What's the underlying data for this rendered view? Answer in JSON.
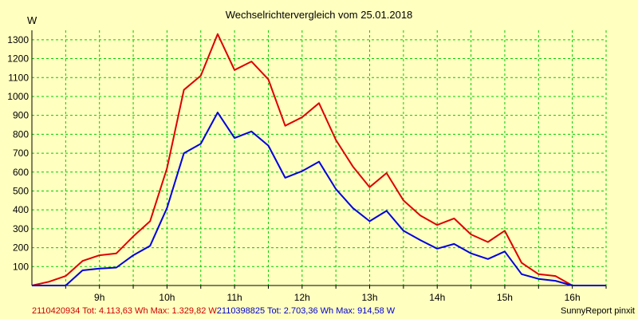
{
  "chart_data": {
    "type": "line",
    "title": "Wechselrichtervergleich vom 25.01.2018",
    "ylabel": "W",
    "xlabel": "",
    "ylim": [
      0,
      1350
    ],
    "y_ticks": [
      100,
      200,
      300,
      400,
      500,
      600,
      700,
      800,
      900,
      1000,
      1100,
      1200,
      1300
    ],
    "y_tick_labels": [
      "100",
      "200",
      "300",
      "400",
      "500",
      "600",
      "700",
      "800",
      "900",
      "1000",
      "1100",
      "1200",
      "1300"
    ],
    "xlim": [
      8.0,
      16.5
    ],
    "x_ticks": [
      8.5,
      9,
      9.5,
      10,
      10.5,
      11,
      11.5,
      12,
      12.5,
      13,
      13.5,
      14,
      14.5,
      15,
      15.5,
      16,
      16.5
    ],
    "x_tick_labels": [
      {
        "at": 9,
        "label": "9h"
      },
      {
        "at": 10,
        "label": "10h"
      },
      {
        "at": 11,
        "label": "11h"
      },
      {
        "at": 12,
        "label": "12h"
      },
      {
        "at": 13,
        "label": "13h"
      },
      {
        "at": 14,
        "label": "14h"
      },
      {
        "at": 15,
        "label": "15h"
      },
      {
        "at": 16,
        "label": "16h"
      }
    ],
    "grid": true,
    "x": [
      8.0,
      8.25,
      8.5,
      8.75,
      9.0,
      9.25,
      9.5,
      9.75,
      10.0,
      10.25,
      10.5,
      10.75,
      11.0,
      11.25,
      11.5,
      11.75,
      12.0,
      12.25,
      12.5,
      12.75,
      13.0,
      13.25,
      13.5,
      13.75,
      14.0,
      14.25,
      14.5,
      14.75,
      15.0,
      15.25,
      15.5,
      15.75,
      16.0,
      16.25,
      16.5
    ],
    "series": [
      {
        "name": "2110420934",
        "color": "#dd0000",
        "values": [
          0,
          20,
          50,
          130,
          160,
          170,
          260,
          340,
          620,
          1035,
          1110,
          1330,
          1140,
          1185,
          1090,
          845,
          890,
          965,
          770,
          630,
          520,
          595,
          450,
          370,
          320,
          355,
          270,
          230,
          290,
          120,
          60,
          50,
          0,
          0,
          0
        ]
      },
      {
        "name": "2110398825",
        "color": "#0000dd",
        "values": [
          0,
          0,
          0,
          80,
          90,
          95,
          160,
          210,
          410,
          700,
          750,
          915,
          780,
          815,
          740,
          570,
          605,
          655,
          510,
          410,
          340,
          395,
          290,
          240,
          195,
          220,
          170,
          140,
          180,
          60,
          35,
          25,
          0,
          0,
          0
        ]
      }
    ]
  },
  "footer": {
    "series1": "2110420934 Tot: 4.113,63 Wh Max: 1.329,82 W",
    "series2": "2110398825 Tot: 2.703,36 Wh Max: 914,58 W",
    "brand": "SunnyReport pinxit"
  },
  "colors": {
    "background": "#ffffc0",
    "plot_background": "#ffffc0",
    "grid": "#00cc00",
    "axis": "#000000"
  }
}
